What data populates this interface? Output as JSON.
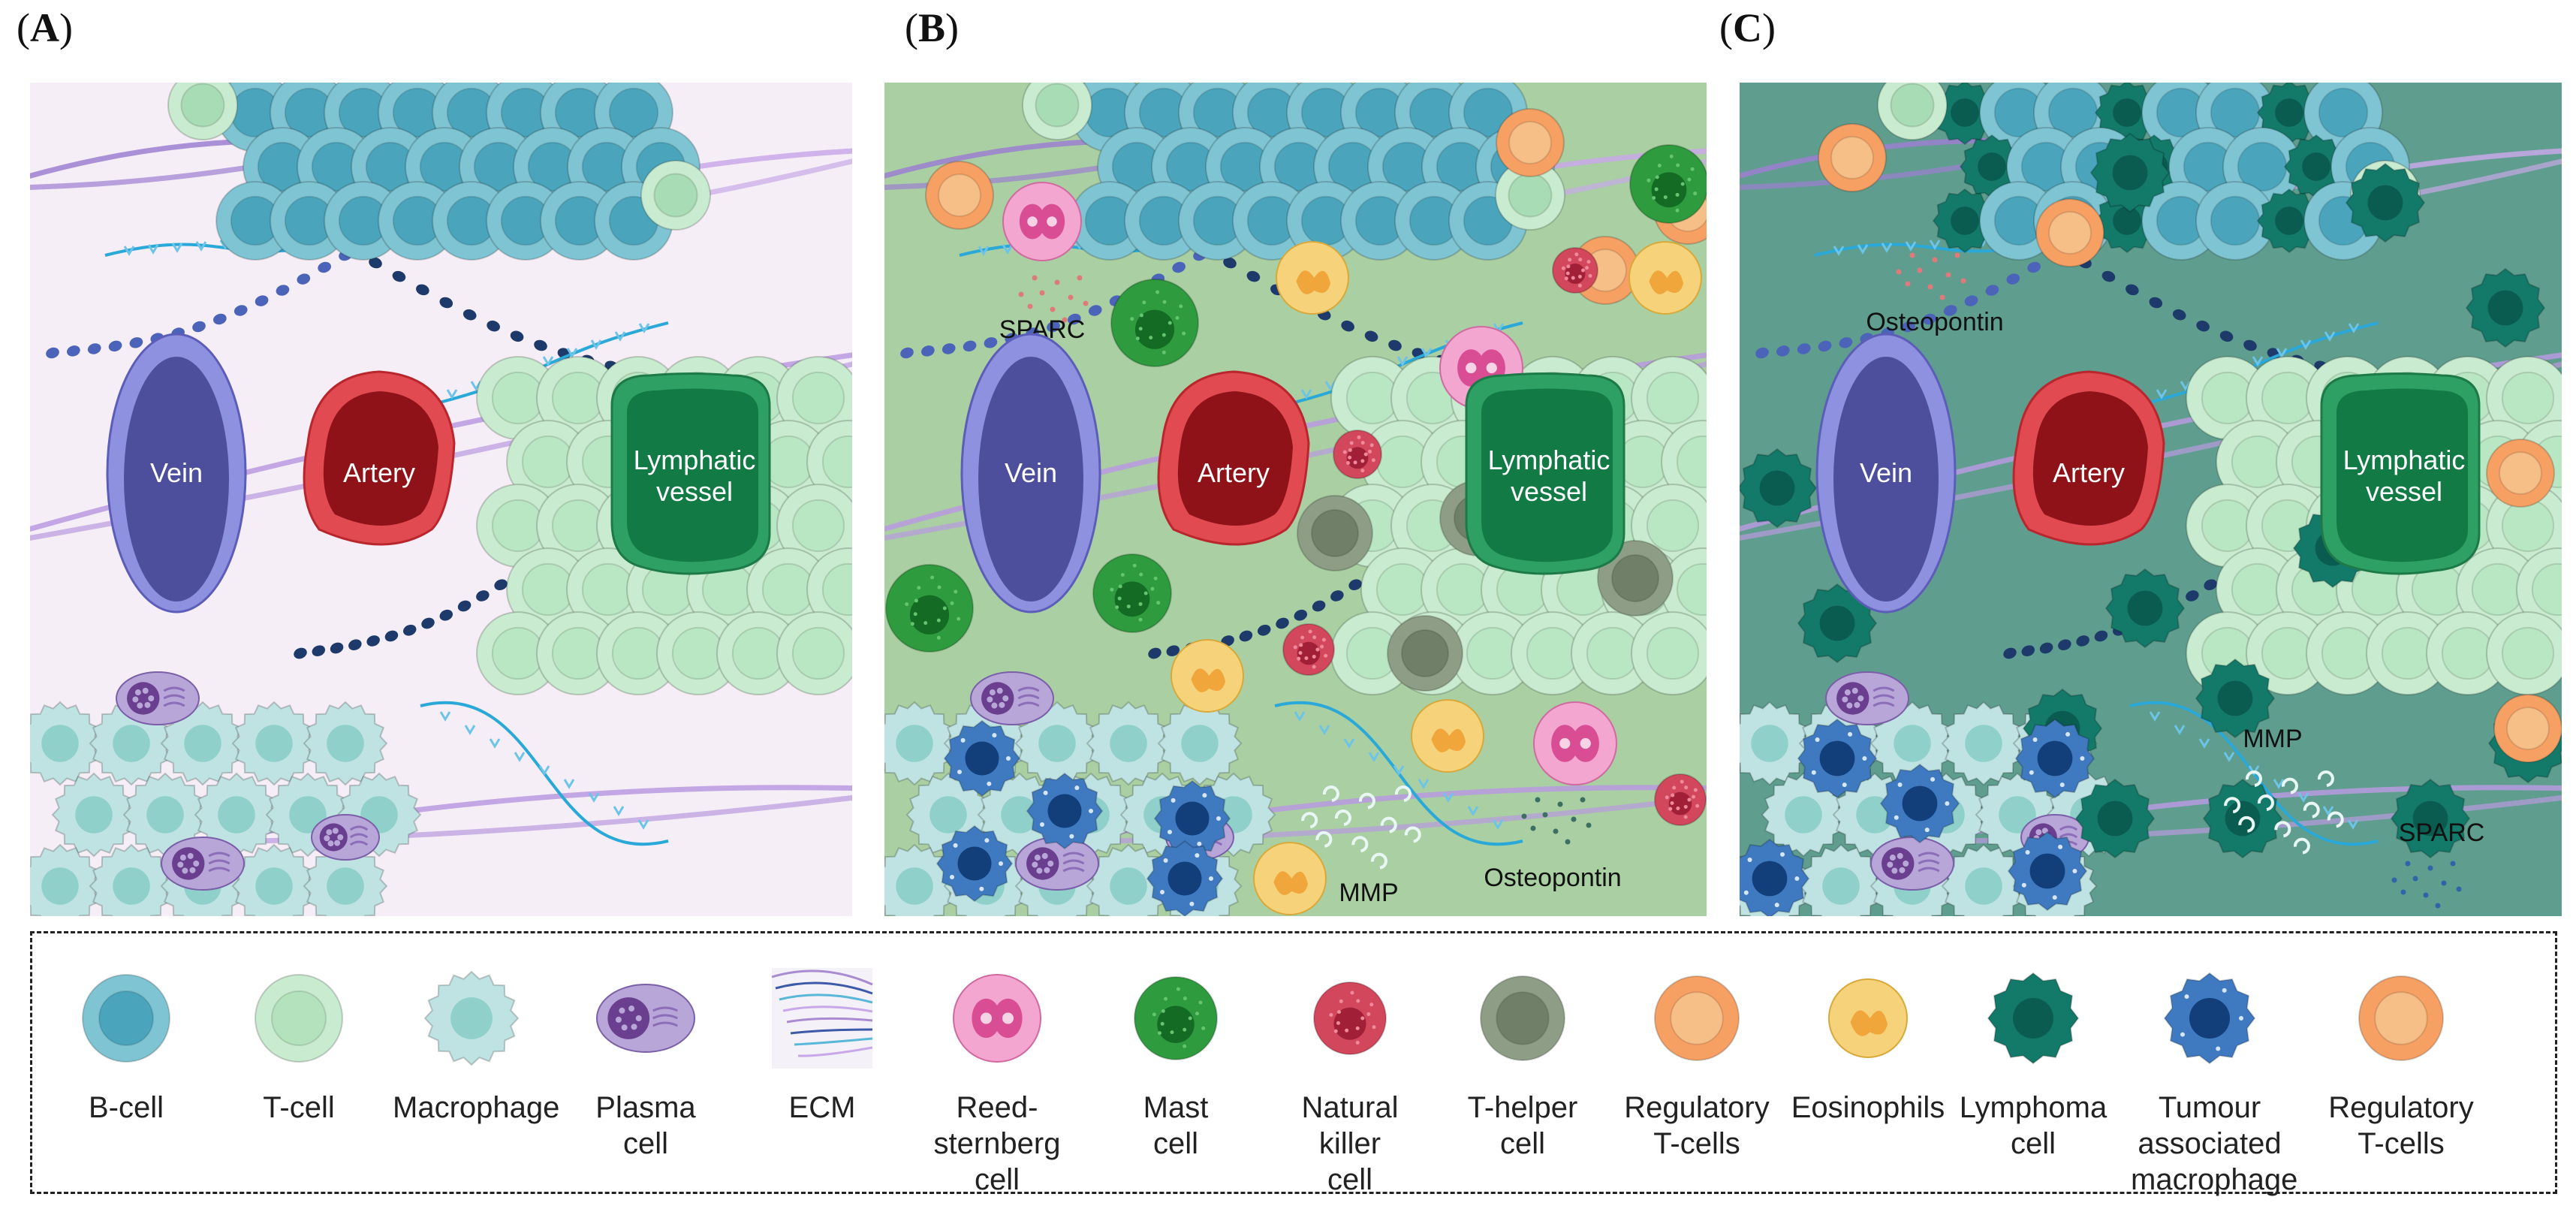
{
  "panels": [
    {
      "label": "A",
      "bg": "#f6eef6",
      "vessels": {
        "vein": "Vein",
        "artery": "Artery",
        "lymphatic": "Lymphatic\nvessel"
      },
      "annotations": []
    },
    {
      "label": "B",
      "bg": "#a9cfa2",
      "vessels": {
        "vein": "Vein",
        "artery": "Artery",
        "lymphatic": "Lymphatic\nvessel"
      },
      "annotations": [
        "SPARC",
        "MMP",
        "Osteopontin"
      ]
    },
    {
      "label": "C",
      "bg": "#5f9e8e",
      "vessels": {
        "vein": "Vein",
        "artery": "Artery",
        "lymphatic": "Lymphatic\nvessel"
      },
      "annotations": [
        "Osteopontin",
        "MMP",
        "SPARC"
      ]
    }
  ],
  "legend": [
    {
      "icon": "b-cell-icon",
      "label": "B-cell",
      "color": "#7fc4d2"
    },
    {
      "icon": "t-cell-icon",
      "label": "T-cell",
      "color": "#c9ebcf"
    },
    {
      "icon": "macrophage-icon",
      "label": "Macrophage",
      "color": "#bfe3e2"
    },
    {
      "icon": "plasma-cell-icon",
      "label": "Plasma\ncell",
      "color": "#b9a6d8"
    },
    {
      "icon": "ecm-icon",
      "label": "ECM",
      "color": "#a98bd0"
    },
    {
      "icon": "reed-sternberg-cell-icon",
      "label": "Reed-\nsternberg\ncell",
      "color": "#f3a6cf"
    },
    {
      "icon": "mast-cell-icon",
      "label": "Mast\ncell",
      "color": "#2e9b3e"
    },
    {
      "icon": "natural-killer-cell-icon",
      "label": "Natural\nkiller\ncell",
      "color": "#d2475c"
    },
    {
      "icon": "t-helper-cell-icon",
      "label": "T-helper\ncell",
      "color": "#8e9e86"
    },
    {
      "icon": "regulatory-t-cells-icon",
      "label": "Regulatory\nT-cells",
      "color": "#f6a064"
    },
    {
      "icon": "eosinophils-icon",
      "label": "Eosinophils",
      "color": "#f4c64e"
    },
    {
      "icon": "lymphoma-cell-icon",
      "label": "Lymphoma\ncell",
      "color": "#137a6a"
    },
    {
      "icon": "tumour-associated-macrophage-icon",
      "label": "Tumour\nassociated\nmacrophage",
      "color": "#2f64a8"
    },
    {
      "icon": "regulatory-t-cells-icon",
      "label": "Regulatory\nT-cells",
      "color": "#f6a064"
    }
  ]
}
